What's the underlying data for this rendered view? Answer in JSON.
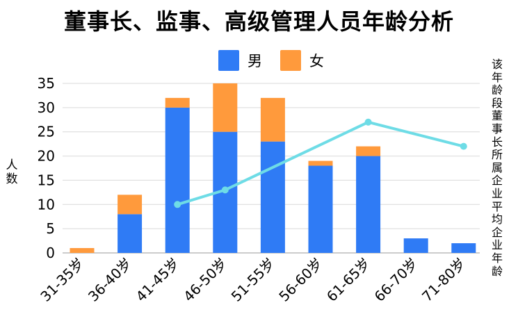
{
  "chart_data": {
    "type": "bar",
    "title": "董事长、监事、高级管理人员年龄分析",
    "ylabel": "人数",
    "y2label": "该年龄段董事长所属企业平均企业年龄",
    "categories": [
      "31-35岁",
      "36-40岁",
      "41-45岁",
      "46-50岁",
      "51-55岁",
      "56-60岁",
      "61-65岁",
      "66-70岁",
      "71-80岁"
    ],
    "stacked": true,
    "series": [
      {
        "name": "男",
        "color": "#2F7BF5",
        "values": [
          0,
          8,
          30,
          25,
          23,
          18,
          20,
          3,
          2
        ]
      },
      {
        "name": "女",
        "color": "#FF9A3C",
        "values": [
          1,
          4,
          2,
          10,
          9,
          1,
          2,
          0,
          0
        ]
      }
    ],
    "line_series": {
      "color": "#6EDCE6",
      "axis": "secondary",
      "values": [
        null,
        null,
        10,
        13,
        null,
        null,
        27,
        null,
        22
      ]
    },
    "ylim": [
      0,
      35
    ],
    "yticks": [
      0,
      5,
      10,
      15,
      20,
      25,
      30,
      35
    ],
    "grid": true,
    "legend_position": "top-center"
  }
}
